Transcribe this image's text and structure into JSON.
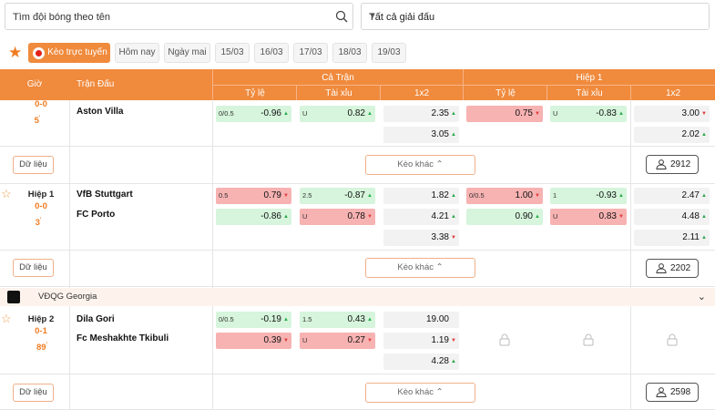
{
  "search": {
    "placeholder": "Tìm đội bóng theo tên"
  },
  "league_select": {
    "value": "Tất cả giải đấu"
  },
  "tabs": [
    "Kèo trực tuyến",
    "Hôm nay",
    "Ngày mai",
    "15/03",
    "16/03",
    "17/03",
    "18/03",
    "19/03"
  ],
  "header": {
    "gio": "Giờ",
    "tran_dau": "Trận Đấu",
    "ca_tran": "Cả Trận",
    "hiep1": "Hiệp 1",
    "ty_le": "Tỷ lệ",
    "tai_xiu": "Tài xỉu",
    "x12": "1x2",
    "ty_le2": "Tỷ lệ",
    "tai_xiu2": "Tài xỉu",
    "x12_2": "1x2"
  },
  "buttons": {
    "du_lieu": "Dữ liệu",
    "keo_khac": "Kèo khác"
  },
  "colors": {
    "accent": "#f08a3c",
    "up": "#2aa84a",
    "down": "#e03a3a",
    "green_cell": "#d6f5dc",
    "red_cell": "#f7b2b2"
  },
  "matches": [
    {
      "score": "0-0",
      "minute": "5",
      "home": "Aston Villa",
      "count": "2912",
      "ft_hdp": {
        "line": "0/0.5",
        "home": "-0.96"
      },
      "ft_ou": {
        "line": "U",
        "over": "0.82"
      },
      "ft_1x2": [
        "2.35",
        "3.05"
      ],
      "h1_hdp": {
        "home": "0.75"
      },
      "h1_ou": {
        "line": "U",
        "over": "-0.83"
      },
      "h1_1x2": [
        "3.00",
        "2.02"
      ]
    },
    {
      "period": "Hiệp 1",
      "score": "0-0",
      "minute": "3",
      "home": "VfB Stuttgart",
      "away": "FC Porto",
      "count": "2202",
      "ft_hdp": {
        "line": "0.5",
        "home": "0.79",
        "away": "-0.86"
      },
      "ft_ou": {
        "line": "2.5",
        "over": "-0.87",
        "line2": "U",
        "under": "0.78"
      },
      "ft_1x2": [
        "1.82",
        "4.21",
        "3.38"
      ],
      "h1_hdp": {
        "line": "0/0.5",
        "home": "1.00",
        "away": "0.90"
      },
      "h1_ou": {
        "line": "1",
        "over": "-0.93",
        "line2": "U",
        "under": "0.83"
      },
      "h1_1x2": [
        "2.47",
        "4.48",
        "2.11"
      ]
    },
    {
      "league": "VĐQG Georgia",
      "period": "Hiệp 2",
      "score": "0-1",
      "minute": "89",
      "home": "Dila Gori",
      "away": "Fc Meshakhte Tkibuli",
      "count": "2598",
      "ft_hdp": {
        "line": "0/0.5",
        "home": "-0.19",
        "away": "0.39"
      },
      "ft_ou": {
        "line": "1.5",
        "over": "0.43",
        "line2": "U",
        "under": "0.27"
      },
      "ft_1x2": [
        "19.00",
        "1.19",
        "4.28"
      ]
    }
  ]
}
